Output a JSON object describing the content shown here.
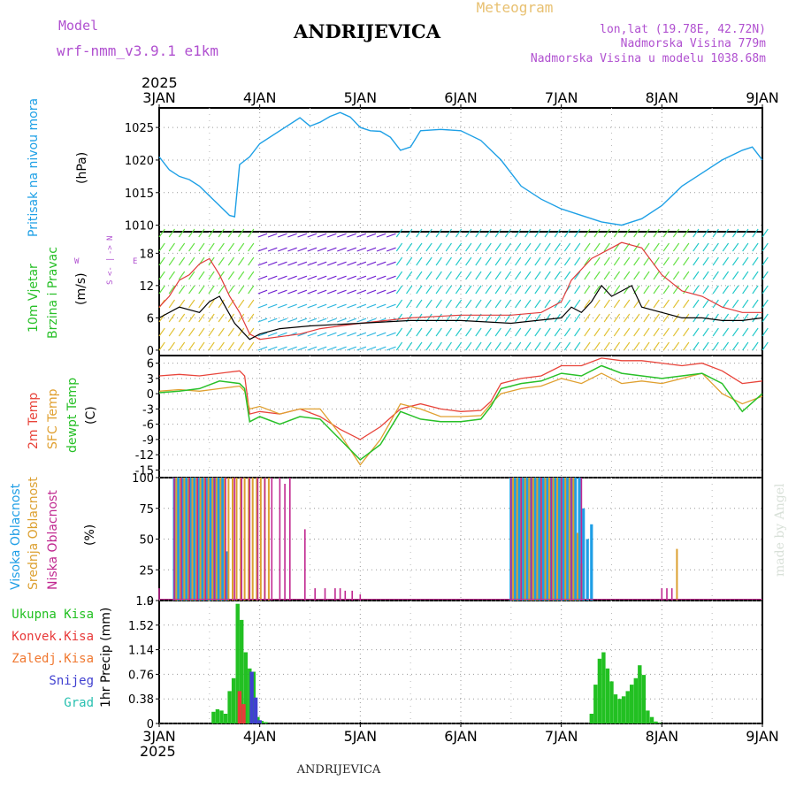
{
  "header": {
    "model_label": "Model",
    "model_name": "wrf-nmm_v3.9.1  e1km",
    "station": "ANDRIJEVICA",
    "product": "Meteogram",
    "lonlat": "lon,lat (19.78E, 42.72N)",
    "elevation": "Nadmorska Visina 779m",
    "model_elevation": "Nadmorska Visina u modelu 1038.68m",
    "footer": "ANDRIJEVICA",
    "credit": "made by Angel"
  },
  "colors": {
    "pressure": "#1ea0e6",
    "wind_speed": "#000000",
    "wind_gust": "#e03a3a",
    "t2m": "#e8443a",
    "sfc_temp": "#e0a030",
    "dewpt": "#28c028",
    "high_cloud": "#1e9ee6",
    "mid_cloud": "#dca030",
    "low_cloud": "#c02890",
    "total_precip": "#22c022",
    "conv_precip": "#e83a3a",
    "snow": "#4040d0",
    "model_label": "#b050d0"
  },
  "chart_data": [
    {
      "type": "line",
      "panel": "pressure",
      "title": "",
      "ylabel": [
        "Pritisak na nivou mora",
        "(hPa)"
      ],
      "x_ticks": [
        "3JAN",
        "4JAN",
        "5JAN",
        "6JAN",
        "7JAN",
        "8JAN",
        "9JAN"
      ],
      "x_year": "2025",
      "ylim": [
        1009,
        1028
      ],
      "y_ticks": [
        1010,
        1015,
        1020,
        1025
      ],
      "grid": true,
      "series": [
        {
          "x": [
            0,
            0.1,
            0.2,
            0.3,
            0.4,
            0.5,
            0.6,
            0.7,
            0.75,
            0.8,
            0.9,
            1.0,
            1.2,
            1.4,
            1.5,
            1.6,
            1.7,
            1.8,
            1.9,
            2.0,
            2.1,
            2.2,
            2.3,
            2.4,
            2.5,
            2.6,
            2.8,
            3.0,
            3.2,
            3.4,
            3.6,
            3.8,
            4.0,
            4.2,
            4.4,
            4.6,
            4.8,
            5.0,
            5.2,
            5.4,
            5.6,
            5.8,
            5.9,
            6.0
          ],
          "values": [
            1020.5,
            1018.5,
            1017.5,
            1017,
            1016,
            1014.5,
            1013,
            1011.5,
            1011.3,
            1019.3,
            1020.5,
            1022.5,
            1024.5,
            1026.5,
            1025.2,
            1025.8,
            1026.7,
            1027.3,
            1026.6,
            1025,
            1024.5,
            1024.4,
            1023.5,
            1021.5,
            1022,
            1024.5,
            1024.7,
            1024.5,
            1023,
            1020,
            1016,
            1014,
            1012.5,
            1011.5,
            1010.5,
            1010,
            1011,
            1013,
            1016,
            1018,
            1020,
            1021.5,
            1022,
            1020
          ]
        }
      ]
    },
    {
      "type": "line",
      "panel": "wind",
      "ylabel": [
        "10m Vjetar",
        "Brzina i Pravac",
        "(m/s)"
      ],
      "direction_legend": [
        "N",
        "<-",
        "|",
        "->",
        "S",
        "W",
        "E"
      ],
      "ylim": [
        -1,
        22
      ],
      "y_ticks": [
        0,
        6,
        12,
        18
      ],
      "series": [
        {
          "name": "wind speed",
          "x": [
            0,
            0.2,
            0.4,
            0.5,
            0.6,
            0.75,
            0.85,
            0.9,
            1.0,
            1.2,
            1.5,
            2.0,
            2.5,
            3.0,
            3.5,
            4.0,
            4.1,
            4.2,
            4.3,
            4.4,
            4.5,
            4.6,
            4.7,
            4.8,
            5.0,
            5.2,
            5.4,
            5.6,
            5.8,
            6.0
          ],
          "values": [
            6,
            8,
            7,
            9,
            10,
            5,
            3,
            2,
            3,
            4,
            4.5,
            5,
            5.5,
            5.5,
            5,
            6,
            8,
            7,
            9,
            12,
            10,
            11,
            12,
            8,
            7,
            6,
            6,
            5.5,
            5.5,
            6
          ]
        },
        {
          "name": "wind gust",
          "x": [
            0,
            0.1,
            0.2,
            0.3,
            0.4,
            0.5,
            0.6,
            0.7,
            0.8,
            0.9,
            1.0,
            1.2,
            1.4,
            1.6,
            1.8,
            2.0,
            2.5,
            3.0,
            3.5,
            3.8,
            4.0,
            4.1,
            4.3,
            4.5,
            4.6,
            4.8,
            5.0,
            5.2,
            5.4,
            5.6,
            5.8,
            6.0
          ],
          "values": [
            8,
            10,
            13,
            14,
            16,
            17,
            14,
            10,
            7,
            3,
            2,
            2.5,
            3,
            4,
            4.5,
            5,
            6,
            6.5,
            6.5,
            7,
            9,
            13,
            17,
            19,
            20,
            19,
            14,
            11,
            10,
            8,
            7,
            7
          ]
        }
      ]
    },
    {
      "type": "line",
      "panel": "temperature",
      "ylabel": [
        "2m Temp",
        "SFC Temp",
        "dewpt Temp",
        "(C)"
      ],
      "ylim": [
        -16.5,
        7.5
      ],
      "y_ticks": [
        6,
        3,
        0,
        -3,
        -6,
        -9,
        -12,
        -15
      ],
      "series": [
        {
          "name": "2m Temp",
          "x": [
            0,
            0.2,
            0.4,
            0.6,
            0.8,
            0.85,
            0.9,
            1.0,
            1.2,
            1.4,
            1.6,
            1.8,
            2.0,
            2.2,
            2.4,
            2.6,
            2.8,
            3.0,
            3.2,
            3.3,
            3.4,
            3.6,
            3.8,
            4.0,
            4.2,
            4.4,
            4.6,
            4.8,
            5.0,
            5.2,
            5.4,
            5.6,
            5.8,
            6.0
          ],
          "values": [
            3.5,
            3.8,
            3.5,
            4,
            4.5,
            3.5,
            -4,
            -3.5,
            -4,
            -3,
            -4.5,
            -7,
            -9,
            -6.5,
            -3,
            -2,
            -3,
            -3.5,
            -3.3,
            -1.5,
            2,
            3,
            3.5,
            5.5,
            5.5,
            7,
            6.5,
            6.5,
            6,
            5.5,
            6,
            4.5,
            2,
            2.5
          ]
        },
        {
          "name": "SFC Temp",
          "x": [
            0,
            0.2,
            0.4,
            0.6,
            0.8,
            0.85,
            0.9,
            1.0,
            1.2,
            1.4,
            1.6,
            1.8,
            2.0,
            2.2,
            2.4,
            2.6,
            2.8,
            3.0,
            3.2,
            3.3,
            3.4,
            3.6,
            3.8,
            4.0,
            4.2,
            4.4,
            4.6,
            4.8,
            5.0,
            5.2,
            5.4,
            5.6,
            5.8,
            6.0
          ],
          "values": [
            0.5,
            0.8,
            0.5,
            1,
            1.5,
            0.5,
            -3,
            -2.5,
            -4,
            -3,
            -3,
            -8,
            -14,
            -9,
            -2,
            -3,
            -4.5,
            -4.5,
            -4.3,
            -2,
            0,
            1,
            1.5,
            3,
            2,
            4,
            2,
            2.5,
            2,
            3,
            4,
            0,
            -2,
            -0.5
          ]
        },
        {
          "name": "dewpt Temp",
          "x": [
            0,
            0.2,
            0.4,
            0.6,
            0.8,
            0.85,
            0.9,
            1.0,
            1.2,
            1.4,
            1.6,
            1.8,
            2.0,
            2.2,
            2.4,
            2.6,
            2.8,
            3.0,
            3.2,
            3.3,
            3.4,
            3.6,
            3.8,
            4.0,
            4.2,
            4.4,
            4.6,
            4.8,
            5.0,
            5.2,
            5.4,
            5.6,
            5.8,
            6.0
          ],
          "values": [
            0.2,
            0.5,
            1,
            2.5,
            2,
            1,
            -5.5,
            -4.5,
            -6,
            -4.5,
            -5,
            -9,
            -13,
            -10,
            -3.5,
            -5,
            -5.5,
            -5.5,
            -5,
            -2.5,
            1,
            2,
            2.5,
            4,
            3.5,
            5.5,
            4,
            3.5,
            3,
            3.5,
            4,
            2,
            -3.5,
            0
          ]
        }
      ]
    },
    {
      "type": "bar",
      "panel": "cloud",
      "ylabel": [
        "Visoka Oblacnost",
        "Srednja Oblacnost",
        "Niska Oblacnost",
        "(%)"
      ],
      "ylim": [
        0,
        100
      ],
      "y_ticks": [
        0,
        25,
        50,
        75,
        100
      ],
      "series": [
        {
          "name": "Visoka Oblacnost",
          "x": [
            0.15,
            0.19,
            0.23,
            0.27,
            0.31,
            0.35,
            0.39,
            0.43,
            0.47,
            0.51,
            0.55,
            0.59,
            0.63,
            0.67,
            3.5,
            3.54,
            3.58,
            3.62,
            3.66,
            3.7,
            3.74,
            3.78,
            3.82,
            3.86,
            3.9,
            3.94,
            3.98,
            4.02,
            4.06,
            4.1,
            4.14,
            4.18,
            4.22,
            4.26,
            4.3
          ],
          "values": [
            100,
            100,
            100,
            100,
            100,
            100,
            100,
            100,
            100,
            100,
            100,
            100,
            100,
            40,
            100,
            100,
            100,
            100,
            100,
            100,
            100,
            100,
            100,
            100,
            100,
            100,
            100,
            100,
            100,
            100,
            100,
            100,
            75,
            50,
            62
          ]
        },
        {
          "name": "Srednja Oblacnost",
          "x": [
            0.17,
            0.21,
            0.25,
            0.29,
            0.33,
            0.37,
            0.41,
            0.45,
            0.49,
            0.53,
            0.57,
            0.61,
            0.65,
            0.69,
            0.73,
            0.77,
            0.81,
            0.85,
            0.89,
            0.93,
            0.97,
            1.01,
            1.05,
            1.09,
            3.52,
            3.56,
            3.6,
            3.64,
            3.68,
            3.72,
            3.76,
            3.8,
            3.84,
            3.88,
            3.92,
            3.96,
            4.0,
            4.04,
            4.08,
            4.12,
            4.16,
            4.2,
            5.15
          ],
          "values": [
            100,
            100,
            100,
            100,
            100,
            100,
            100,
            100,
            100,
            100,
            100,
            100,
            100,
            100,
            100,
            100,
            100,
            100,
            100,
            100,
            100,
            100,
            100,
            100,
            100,
            100,
            100,
            100,
            100,
            100,
            100,
            100,
            100,
            100,
            100,
            100,
            100,
            100,
            100,
            100,
            55,
            30,
            42
          ]
        },
        {
          "name": "Niska Oblacnost",
          "x": [
            0.0,
            0.15,
            0.22,
            0.3,
            0.38,
            0.46,
            0.55,
            0.66,
            0.75,
            0.82,
            0.9,
            0.98,
            1.05,
            1.12,
            1.2,
            1.25,
            1.3,
            1.45,
            1.55,
            1.65,
            1.75,
            1.8,
            1.85,
            1.92,
            2.0,
            3.5,
            3.6,
            3.7,
            3.8,
            3.9,
            4.0,
            4.1,
            4.2,
            5.0,
            5.05,
            5.1
          ],
          "values": [
            10,
            100,
            100,
            100,
            100,
            100,
            100,
            100,
            100,
            100,
            100,
            100,
            100,
            100,
            100,
            95,
            100,
            58,
            10,
            10,
            10,
            10,
            8,
            8,
            5,
            100,
            100,
            100,
            100,
            100,
            100,
            100,
            100,
            10,
            10,
            10
          ]
        }
      ]
    },
    {
      "type": "bar",
      "panel": "precip",
      "ylabel": [
        "1hr Precip (mm)"
      ],
      "legend": [
        "Ukupna Kisa",
        "Konvek.Kisa",
        "Zaledj.Kisa",
        "Snijeg",
        "Grad"
      ],
      "ylim": [
        0,
        1.9
      ],
      "y_ticks": [
        0,
        0.38,
        0.76,
        1.14,
        1.52,
        1.9
      ],
      "y_tick_labels": [
        "0",
        "0.38",
        "0.76",
        "1.14",
        "1.52",
        "1.9"
      ],
      "x_ticks": [
        "3JAN",
        "4JAN",
        "5JAN",
        "6JAN",
        "7JAN",
        "8JAN",
        "9JAN"
      ],
      "x_year": "2025",
      "series": [
        {
          "name": "Ukupna Kisa",
          "x": [
            0.54,
            0.58,
            0.62,
            0.66,
            0.7,
            0.74,
            0.78,
            0.82,
            0.86,
            0.9,
            0.94,
            0.98,
            1.02,
            1.06,
            4.3,
            4.34,
            4.38,
            4.42,
            4.46,
            4.5,
            4.54,
            4.58,
            4.62,
            4.66,
            4.7,
            4.74,
            4.78,
            4.82,
            4.86,
            4.9,
            4.94,
            4.98
          ],
          "values": [
            0.18,
            0.22,
            0.2,
            0.15,
            0.5,
            0.7,
            1.85,
            1.6,
            1.1,
            0.85,
            0.8,
            0.1,
            0.04,
            0.02,
            0.15,
            0.6,
            1.0,
            1.1,
            0.85,
            0.65,
            0.45,
            0.38,
            0.42,
            0.5,
            0.6,
            0.7,
            0.9,
            0.75,
            0.2,
            0.1,
            0.03,
            0.01
          ]
        },
        {
          "name": "Konvek.Kisa",
          "x": [
            0.8,
            0.84
          ],
          "values": [
            0.5,
            0.3
          ]
        },
        {
          "name": "Snijeg",
          "x": [
            0.92,
            0.96,
            1.0
          ],
          "values": [
            0.8,
            0.4,
            0.05
          ]
        }
      ]
    }
  ]
}
